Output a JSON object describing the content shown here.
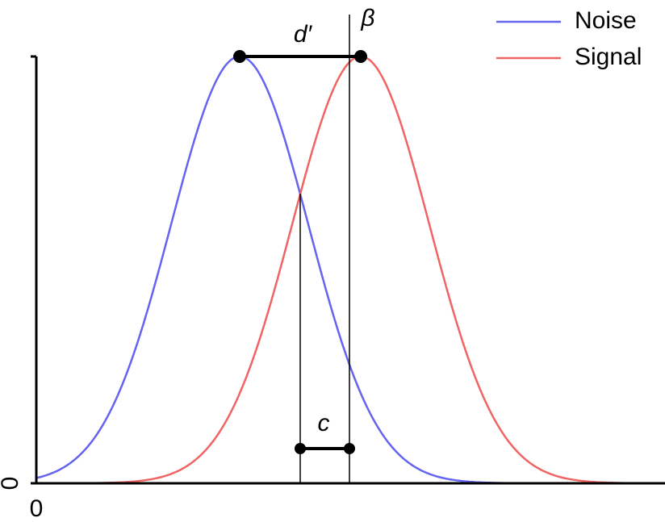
{
  "labels": {
    "d_prime": "d′",
    "beta": "β",
    "c": "c"
  },
  "axes": {
    "y_origin": "0",
    "x_origin": "0"
  },
  "legend": [
    {
      "name": "Noise",
      "color": "#6464f0"
    },
    {
      "name": "Signal",
      "color": "#f06464"
    }
  ]
}
